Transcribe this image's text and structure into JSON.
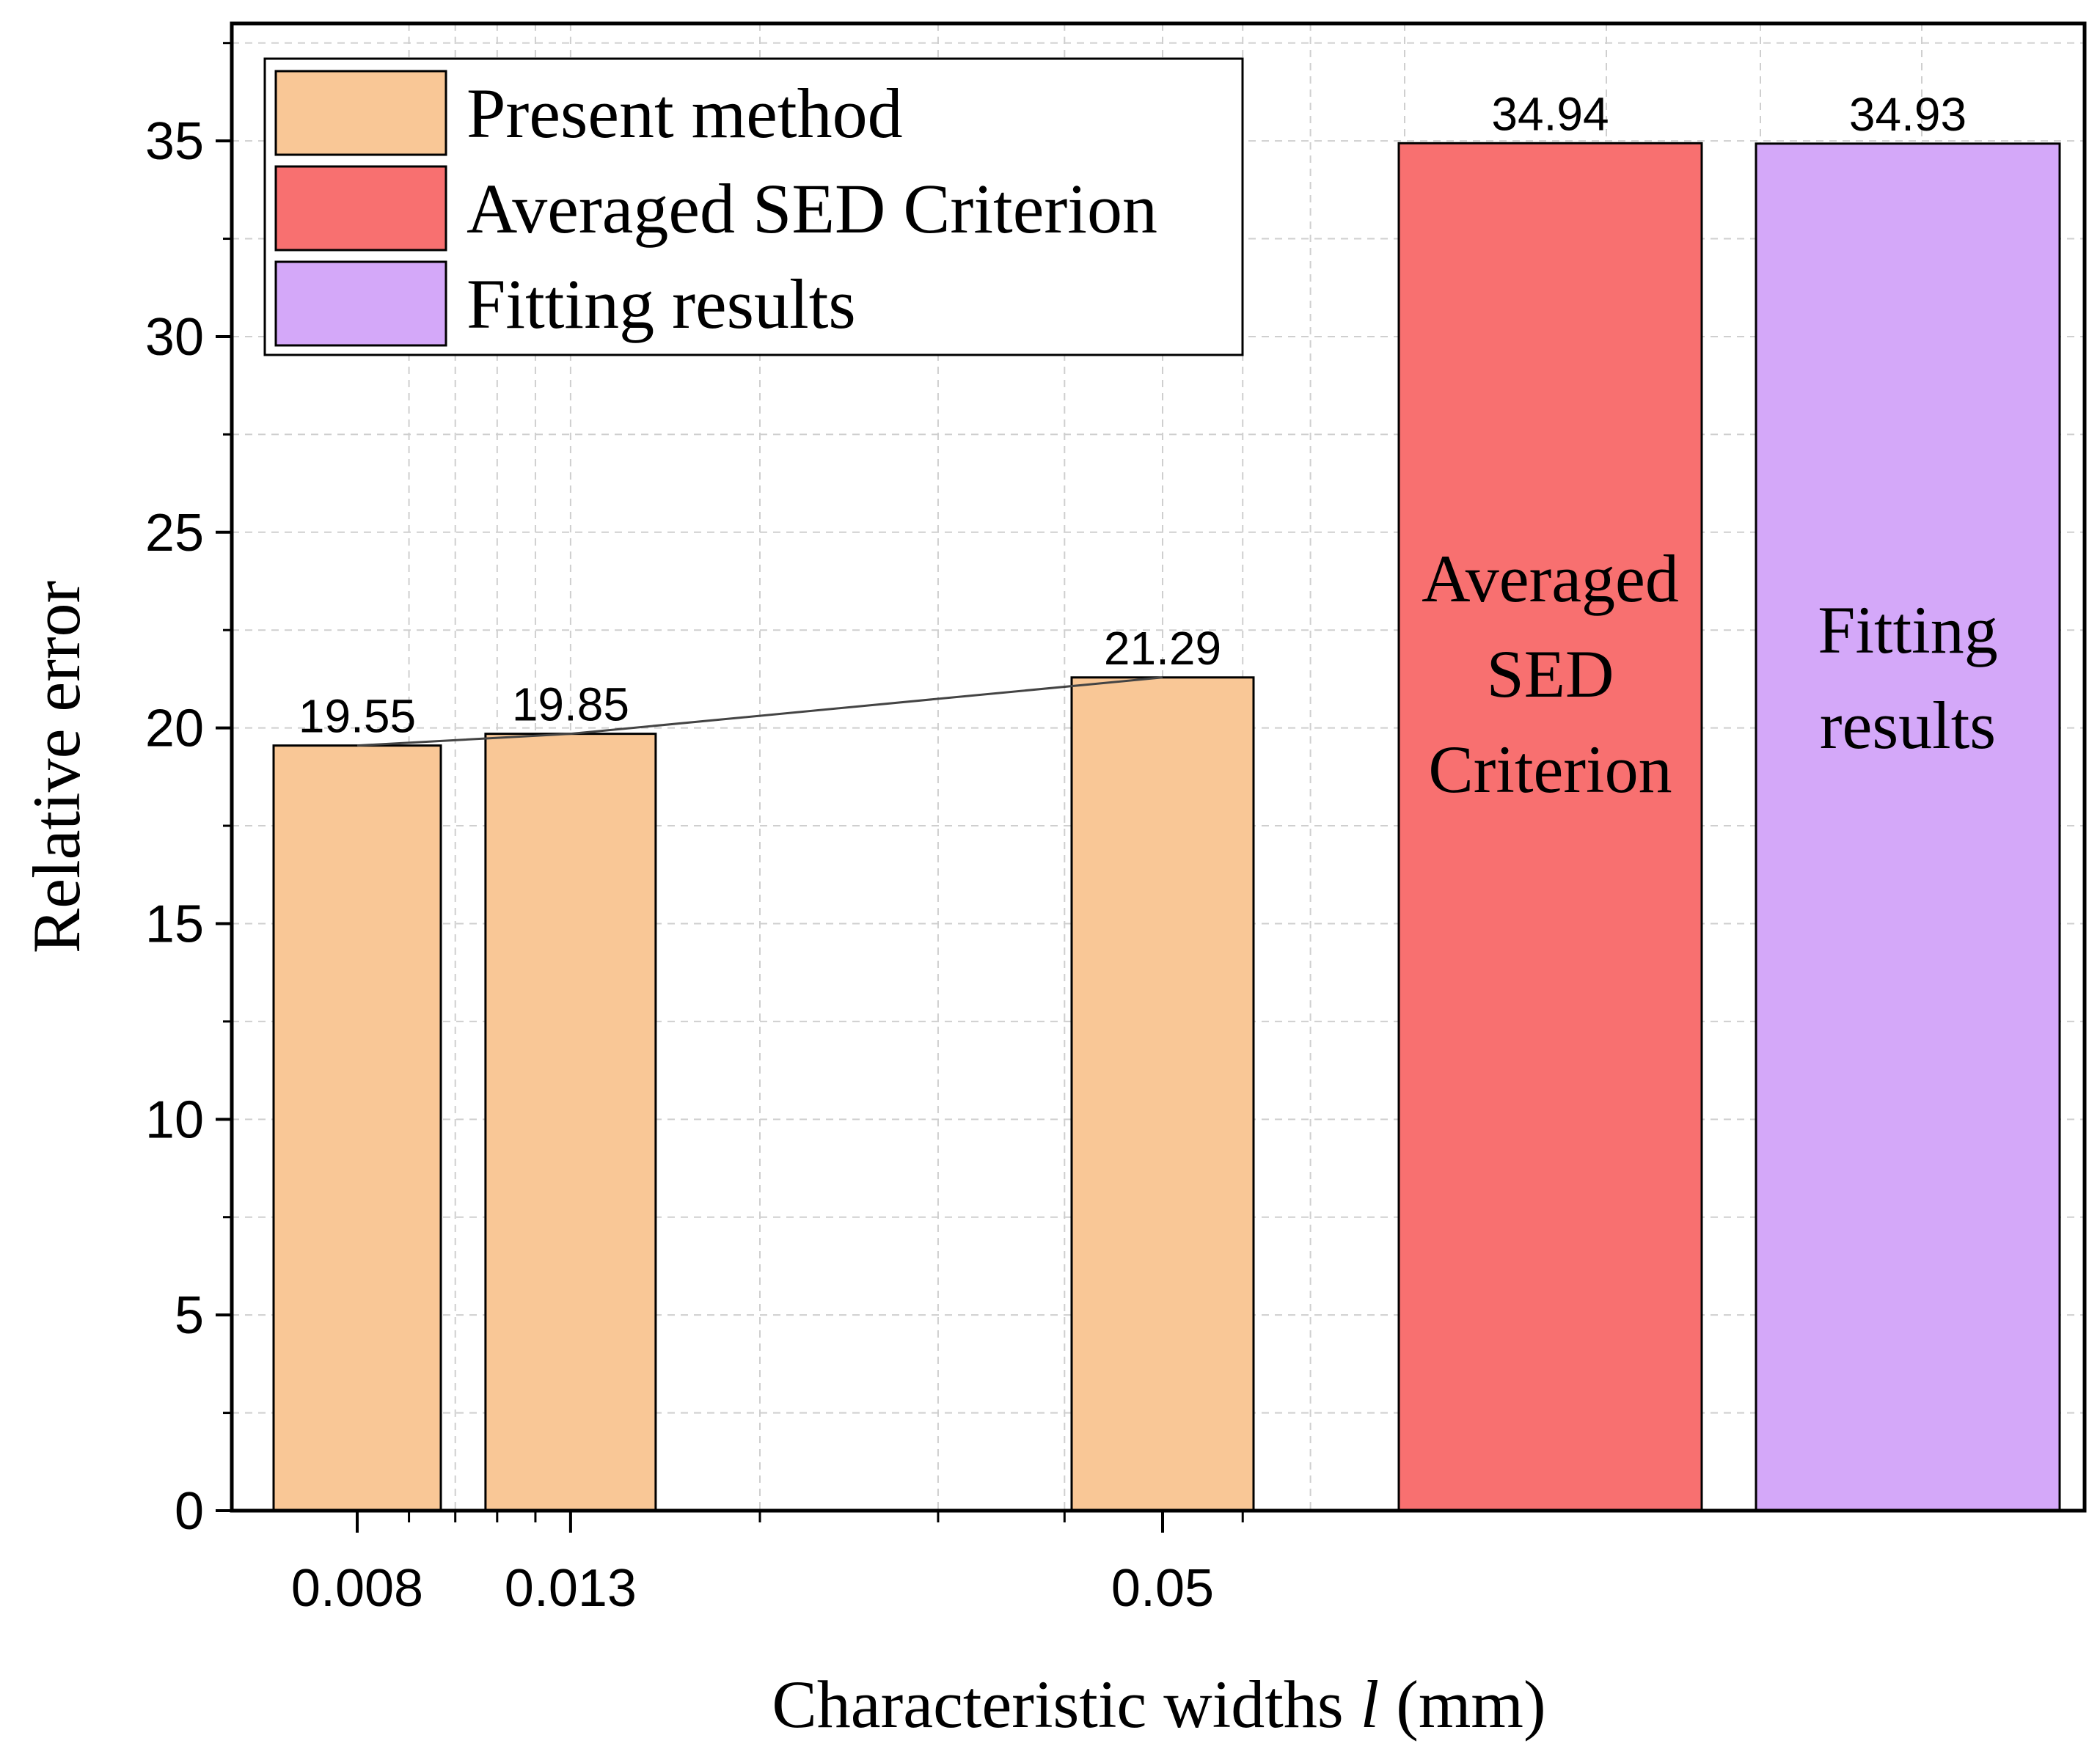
{
  "chart_data": {
    "type": "bar",
    "title": "",
    "xlabel_prefix": "Characteristic widths ",
    "xlabel_symbol": "l",
    "xlabel_suffix": " (mm)",
    "ylabel": "Relative error",
    "ylim": [
      0,
      38
    ],
    "y_ticks": [
      "0",
      "5",
      "10",
      "15",
      "20",
      "25",
      "30",
      "35"
    ],
    "y_tick_values": [
      0,
      5,
      10,
      15,
      20,
      25,
      30,
      35
    ],
    "x_scale": "log",
    "x_tick_labels": [
      "0.008",
      "0.013",
      "0.05"
    ],
    "grid": true,
    "legend_position": "top-left",
    "series": [
      {
        "name": "Present method",
        "color": "#F9C796",
        "x": [
          0.008,
          0.013,
          0.05
        ],
        "values": [
          19.55,
          19.85,
          21.29
        ],
        "labels": [
          "19.55",
          "19.85",
          "21.29"
        ]
      },
      {
        "name": "Averaged SED Criterion",
        "color": "#F87070",
        "values": [
          34.94
        ],
        "labels": [
          "34.94"
        ],
        "bar_text": [
          "Averaged",
          "SED",
          "Criterion"
        ]
      },
      {
        "name": "Fitting results",
        "color": "#D4A8F9",
        "values": [
          34.93
        ],
        "labels": [
          "34.93"
        ],
        "bar_text": [
          "Fitting",
          "results"
        ]
      }
    ]
  }
}
